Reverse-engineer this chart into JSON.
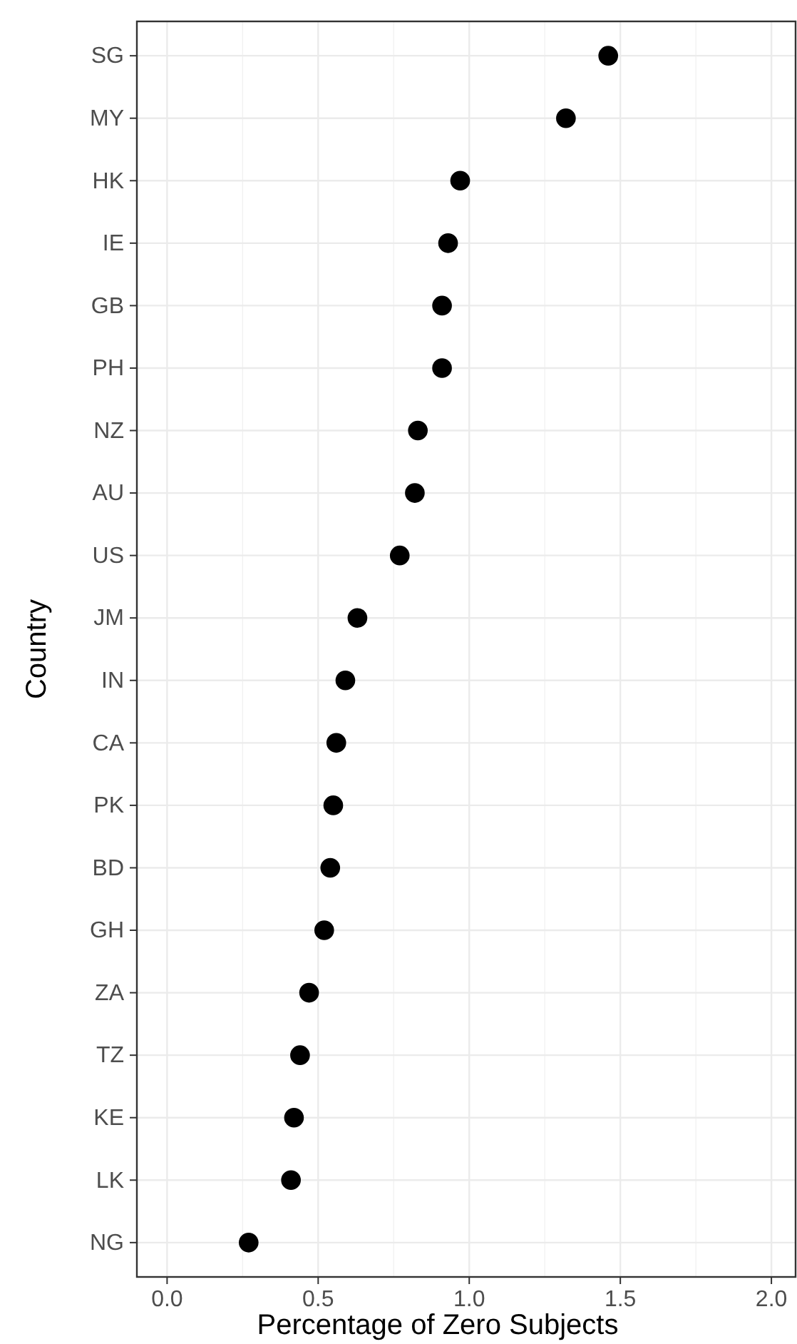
{
  "chart_data": {
    "type": "scatter",
    "xlabel": "Percentage of Zero Subjects",
    "ylabel": "Country",
    "orientation": "horizontal",
    "categories": [
      "SG",
      "MY",
      "HK",
      "IE",
      "GB",
      "PH",
      "NZ",
      "AU",
      "US",
      "JM",
      "IN",
      "CA",
      "PK",
      "BD",
      "GH",
      "ZA",
      "TZ",
      "KE",
      "LK",
      "NG"
    ],
    "values": [
      1.46,
      1.32,
      0.97,
      0.93,
      0.91,
      0.91,
      0.83,
      0.82,
      0.77,
      0.63,
      0.59,
      0.56,
      0.55,
      0.54,
      0.52,
      0.47,
      0.44,
      0.42,
      0.41,
      0.27
    ],
    "color": "#000000",
    "marker": "circle",
    "grid": true,
    "xlim": [
      -0.1,
      2.08
    ],
    "xticks": [
      {
        "value": 0,
        "label": "0.0"
      },
      {
        "value": 0.5,
        "label": "0.5"
      },
      {
        "value": 1,
        "label": "1.0"
      },
      {
        "value": 1.5,
        "label": "1.5"
      },
      {
        "value": 2,
        "label": "2.0"
      }
    ]
  }
}
